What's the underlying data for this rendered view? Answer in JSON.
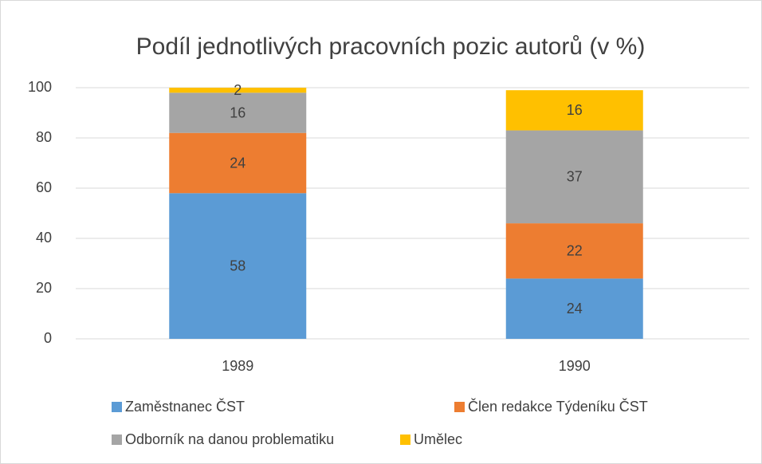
{
  "chart_data": {
    "type": "stacked_bar",
    "title": "Podíl jednotlivých pracovních pozic autorů (v %)",
    "categories": [
      "1989",
      "1990"
    ],
    "series": [
      {
        "name": "Zaměstnanec ČST",
        "color": "#5b9bd5",
        "values": [
          58,
          24
        ]
      },
      {
        "name": "Člen redakce Týdeníku ČST",
        "color": "#ed7d31",
        "values": [
          24,
          22
        ]
      },
      {
        "name": "Odborník na danou problematiku",
        "color": "#a5a5a5",
        "values": [
          16,
          37
        ]
      },
      {
        "name": "Umělec",
        "color": "#ffc000",
        "values": [
          2,
          16
        ]
      }
    ],
    "ylim": [
      0,
      100
    ],
    "yticks": [
      0,
      20,
      40,
      60,
      80,
      100
    ],
    "grid": true,
    "legend": "bottom"
  }
}
